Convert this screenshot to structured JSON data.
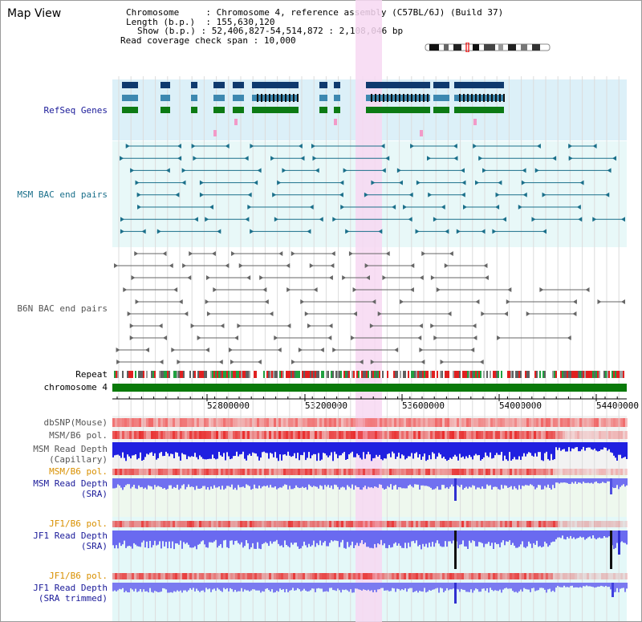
{
  "page": {
    "title": "Map View"
  },
  "header": {
    "chromosome_label": "Chromosome",
    "chromosome_value": "Chromosome 4, reference assembly (C57BL/6J) (Build 37)",
    "length_label": "Length (b.p.)",
    "length_value": "155,630,120",
    "show_label": "Show (b.p.)",
    "show_value": "52,406,827-54,514,872 : 2,108,046 bp",
    "coverage_label": "Read coverage check span",
    "coverage_value": "10,000"
  },
  "tracks": {
    "refseq": "RefSeq Genes",
    "msm_bac": "MSM BAC end pairs",
    "b6n_bac": "B6N BAC end pairs",
    "repeat": "Repeat",
    "chromosome": "chromosome 4",
    "dbsnp": "dbSNP(Mouse)",
    "msm_b6_pol": "MSM/B6 pol.",
    "msm_depth_cap_1": "MSM Read Depth",
    "msm_depth_cap_2": "(Capillary)",
    "msm_b6_pol_sra": "MSM/B6 pol.",
    "msm_depth_sra_1": "MSM Read Depth",
    "msm_depth_sra_2": "(SRA)",
    "jf1_b6_pol": "JF1/B6 pol.",
    "jf1_depth_1": "JF1 Read Depth",
    "jf1_depth_2": "(SRA)",
    "jf1_b6_pol_trim": "JF1/B6 pol.",
    "jf1_trim_1": "JF1 Read Depth",
    "jf1_trim_2": "(SRA trimmed)"
  },
  "axis": {
    "ticks": [
      "52800000",
      "53200000",
      "53600000",
      "54000000",
      "54400000"
    ]
  },
  "colors": {
    "refseq_label": "#1a1a99",
    "msm_label": "#1a6f8a",
    "gray_label": "#555555",
    "orange_label": "#d99000",
    "blue_label": "#1a1a99",
    "highlight": "#f7d8f2"
  }
}
